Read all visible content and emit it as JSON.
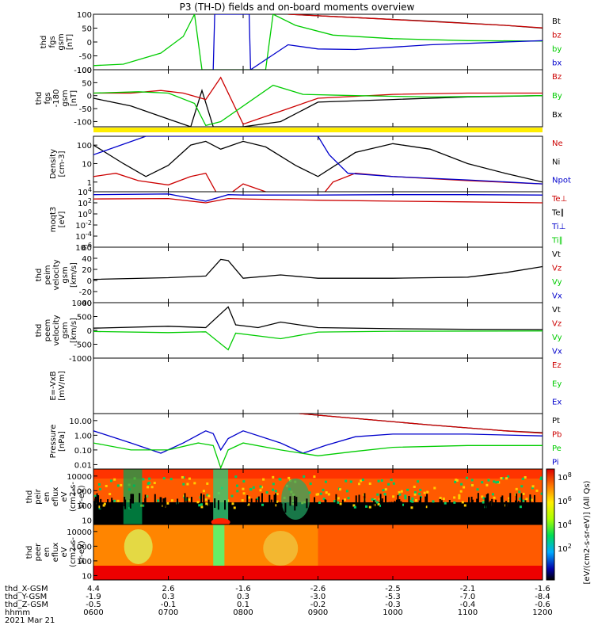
{
  "title": "P3 (TH-D) fields and on-board moments overview",
  "date_label": "2021 Mar 21",
  "colorbar_label": "[eV/(cm2-s-sr-eV)] (All Qs)",
  "colors": {
    "black": "#000000",
    "red": "#cc0000",
    "green": "#00cc00",
    "blue": "#0000cc",
    "yellow": "#ffee00"
  },
  "footer": {
    "row_labels": [
      "thd_X-GSM",
      "thd_Y-GSM",
      "thd_Z-GSM",
      "hhmm"
    ],
    "columns": [
      [
        "4.4",
        "-1.9",
        "-0.5",
        "0600"
      ],
      [
        "2.6",
        "0.3",
        "-0.1",
        "0700"
      ],
      [
        "-1.6",
        "0.3",
        "0.1",
        "0800"
      ],
      [
        "-2.6",
        "-3.0",
        "-0.2",
        "0900"
      ],
      [
        "-2.5",
        "-5.3",
        "-0.3",
        "1000"
      ],
      [
        "-2.1",
        "-7.0",
        "-0.4",
        "1100"
      ],
      [
        "-1.6",
        "-8.4",
        "-0.6",
        "1200"
      ]
    ]
  },
  "chart_data": [
    {
      "panel": "fgs",
      "type": "line",
      "ylabel": [
        "thd",
        "fgs",
        "gsm",
        "[nT]"
      ],
      "ylim": [
        -100,
        100
      ],
      "yticks": [
        "100",
        "50",
        "0",
        "-50",
        "-100"
      ],
      "legend": [
        {
          "name": "Bt",
          "color": "#000000"
        },
        {
          "name": "bz",
          "color": "#cc0000"
        },
        {
          "name": "by",
          "color": "#00cc00"
        },
        {
          "name": "bx",
          "color": "#0000cc"
        }
      ],
      "series": [
        {
          "name": "Bt",
          "color": "#000000",
          "x": [
            8.6,
            9.5,
            10.5,
            11.5,
            12.0
          ],
          "y": [
            100,
            88,
            75,
            60,
            50
          ]
        },
        {
          "name": "bz",
          "color": "#cc0000",
          "x": [
            8.6,
            9.5,
            10.5,
            11.5,
            12.0
          ],
          "y": [
            100,
            88,
            74,
            60,
            51
          ]
        },
        {
          "name": "by",
          "color": "#00cc00",
          "x": [
            6.0,
            6.4,
            6.9,
            7.2,
            7.35,
            7.45,
            8.3,
            8.4,
            8.7,
            9.2,
            10.0,
            11.0,
            12.0
          ],
          "y": [
            -85,
            -80,
            -40,
            20,
            100,
            -100,
            -100,
            100,
            60,
            25,
            12,
            5,
            3
          ]
        },
        {
          "name": "bx",
          "color": "#0000cc",
          "x": [
            7.6,
            7.62,
            8.08,
            8.1,
            8.6,
            9.0,
            9.5,
            10.5,
            11.5,
            12.0
          ],
          "y": [
            -100,
            100,
            100,
            -100,
            -10,
            -25,
            -27,
            -10,
            0,
            5
          ]
        }
      ]
    },
    {
      "panel": "fgs_m180",
      "type": "line",
      "ylabel": [
        "thd",
        "fgs",
        "-180",
        "gsm",
        "[nT]"
      ],
      "ylim": [
        -120,
        100
      ],
      "yticks": [
        "100",
        "50",
        "0",
        "-50",
        "-100"
      ],
      "legend": [
        {
          "name": "Bz",
          "color": "#cc0000"
        },
        {
          "name": "By",
          "color": "#00cc00"
        },
        {
          "name": "Bx",
          "color": "#000000"
        }
      ],
      "series": [
        {
          "name": "Bx",
          "color": "#000000",
          "x": [
            6.0,
            6.5,
            7.0,
            7.3,
            7.45,
            7.6,
            7.7,
            8.0,
            8.5,
            9.0,
            10.0,
            11.0,
            12.0
          ],
          "y": [
            -10,
            -40,
            -90,
            -120,
            20,
            -120,
            -120,
            -120,
            -100,
            -25,
            -15,
            -5,
            0
          ]
        },
        {
          "name": "Bz",
          "color": "#cc0000",
          "x": [
            6.0,
            6.5,
            6.9,
            7.2,
            7.5,
            7.7,
            8.0,
            8.5,
            9.0,
            10.0,
            11.0,
            12.0
          ],
          "y": [
            10,
            10,
            20,
            10,
            -15,
            70,
            -110,
            -60,
            -10,
            5,
            10,
            10
          ]
        },
        {
          "name": "By",
          "color": "#00cc00",
          "x": [
            6.0,
            6.6,
            7.0,
            7.35,
            7.5,
            7.7,
            8.4,
            8.8,
            9.5,
            10.5,
            12.0
          ],
          "y": [
            10,
            15,
            10,
            -30,
            -115,
            -100,
            40,
            5,
            0,
            -5,
            0
          ]
        }
      ]
    },
    {
      "panel": "density",
      "type": "line",
      "ylabel": [
        "Density",
        "[cm-3]"
      ],
      "scale": "log",
      "ylim": [
        0.3,
        300
      ],
      "yticks": [
        "100",
        "10",
        "1"
      ],
      "legend": [
        {
          "name": "Ne",
          "color": "#cc0000"
        },
        {
          "name": "Ni",
          "color": "#000000"
        },
        {
          "name": "Npot",
          "color": "#0000cc"
        }
      ],
      "series": [
        {
          "name": "Ni",
          "color": "#000000",
          "x": [
            6.0,
            6.4,
            6.7,
            7.0,
            7.3,
            7.5,
            7.7,
            8.0,
            8.3,
            8.7,
            9.0,
            9.5,
            10.0,
            10.5,
            11.0,
            11.5,
            12.0
          ],
          "y": [
            100,
            10,
            2,
            8,
            100,
            160,
            60,
            160,
            80,
            8,
            2,
            40,
            120,
            60,
            10,
            3,
            1
          ]
        },
        {
          "name": "Ne",
          "color": "#cc0000",
          "x": [
            6.0,
            6.3,
            6.6,
            7.0,
            7.3,
            7.5,
            7.7,
            8.0,
            8.3,
            8.7,
            9.0,
            9.2,
            9.5,
            10.0,
            11.0,
            12.0
          ],
          "y": [
            2,
            3,
            1.2,
            0.7,
            2,
            3,
            0.1,
            0.8,
            0.3,
            0.2,
            0.1,
            1,
            3,
            2,
            1.2,
            0.8
          ]
        },
        {
          "name": "Npot",
          "color": "#0000cc",
          "x": [
            6.0,
            6.7,
            7.0,
            8.0,
            9.0,
            9.15,
            9.4,
            10.0,
            11.0,
            12.0
          ],
          "y": [
            30,
            300,
            300,
            300,
            300,
            30,
            3,
            2,
            1.3,
            0.8
          ]
        }
      ]
    },
    {
      "panel": "moqt3",
      "type": "line",
      "ylabel": [
        "moqt3",
        "[eV]"
      ],
      "scale": "log",
      "ylim": [
        1e-06,
        10000
      ],
      "yticks": [
        "10^4",
        "10^2",
        "10^0",
        "10^-2",
        "10^-4",
        "10^-6"
      ],
      "legend": [
        {
          "name": "Te⊥",
          "color": "#cc0000"
        },
        {
          "name": "Te∥",
          "color": "#000000"
        },
        {
          "name": "Ti⊥",
          "color": "#0000cc"
        },
        {
          "name": "Ti∥",
          "color": "#00cc00"
        }
      ],
      "series": [
        {
          "name": "Te⊥",
          "color": "#cc0000",
          "x": [
            6.0,
            7.0,
            7.5,
            7.8,
            8.0,
            9.0,
            10.0,
            11.0,
            12.0
          ],
          "y": [
            500,
            600,
            100,
            600,
            500,
            300,
            200,
            150,
            100
          ]
        },
        {
          "name": "Ti⊥",
          "color": "#0000cc",
          "x": [
            6.0,
            7.0,
            7.5,
            7.8,
            8.0,
            9.0,
            10.0,
            11.0,
            12.0
          ],
          "y": [
            3000,
            4000,
            200,
            3000,
            2500,
            2500,
            3000,
            3000,
            2500
          ]
        }
      ]
    },
    {
      "panel": "peim_velocity",
      "type": "line",
      "ylabel": [
        "thd",
        "peim",
        "velocity",
        "gsm",
        "[km/s]"
      ],
      "ylim": [
        -40,
        60
      ],
      "yticks": [
        "60",
        "40",
        "20",
        "0",
        "-20",
        "-40"
      ],
      "legend": [
        {
          "name": "Vt",
          "color": "#000000"
        },
        {
          "name": "Vz",
          "color": "#cc0000"
        },
        {
          "name": "Vy",
          "color": "#00cc00"
        },
        {
          "name": "Vx",
          "color": "#0000cc"
        }
      ],
      "series": [
        {
          "name": "Vt",
          "color": "#000000",
          "x": [
            6.0,
            7.0,
            7.5,
            7.7,
            7.8,
            8.0,
            8.5,
            9.0,
            10.0,
            11.0,
            11.5,
            12.0
          ],
          "y": [
            2,
            5,
            8,
            38,
            36,
            4,
            10,
            4,
            4,
            6,
            14,
            25
          ]
        }
      ]
    },
    {
      "panel": "peem_velocity",
      "type": "line",
      "ylabel": [
        "thd",
        "peem",
        "velocity",
        "gsm",
        "[km/s]"
      ],
      "ylim": [
        -1000,
        1000
      ],
      "yticks": [
        "1000",
        "500",
        "0",
        "-500",
        "-1000"
      ],
      "legend": [
        {
          "name": "Vt",
          "color": "#000000"
        },
        {
          "name": "Vz",
          "color": "#cc0000"
        },
        {
          "name": "Vy",
          "color": "#00cc00"
        },
        {
          "name": "Vx",
          "color": "#0000cc"
        }
      ],
      "series": [
        {
          "name": "Vt",
          "color": "#000000",
          "x": [
            6.0,
            7.0,
            7.5,
            7.8,
            7.9,
            8.2,
            8.5,
            9.0,
            10.0,
            11.0,
            12.0
          ],
          "y": [
            80,
            150,
            100,
            850,
            200,
            100,
            300,
            100,
            60,
            40,
            30
          ]
        },
        {
          "name": "Vy",
          "color": "#00cc00",
          "x": [
            6.0,
            7.0,
            7.5,
            7.8,
            7.9,
            8.5,
            9.0,
            10.0,
            12.0
          ],
          "y": [
            -40,
            -80,
            -50,
            -700,
            -100,
            -300,
            -60,
            -30,
            -20
          ]
        }
      ]
    },
    {
      "panel": "efield",
      "type": "line",
      "ylabel": [
        "E=-VxB",
        "[mV/m]"
      ],
      "legend": [
        {
          "name": "Ez",
          "color": "#cc0000"
        },
        {
          "name": "Ey",
          "color": "#00cc00"
        },
        {
          "name": "Ex",
          "color": "#0000cc"
        }
      ],
      "series": []
    },
    {
      "panel": "pressure",
      "type": "line",
      "ylabel": [
        "Pressure",
        "[nPa]"
      ],
      "scale": "log",
      "ylim": [
        0.005,
        30
      ],
      "yticks": [
        "10.00",
        "1.00",
        "0.10",
        "0.01"
      ],
      "legend": [
        {
          "name": "Pt",
          "color": "#000000"
        },
        {
          "name": "Pb",
          "color": "#cc0000"
        },
        {
          "name": "Pe",
          "color": "#00cc00"
        },
        {
          "name": "Pi",
          "color": "#0000cc"
        }
      ],
      "series": [
        {
          "name": "Pt",
          "color": "#000000",
          "x": [
            8.75,
            9.5,
            10.5,
            11.5,
            12.0
          ],
          "y": [
            30,
            14,
            5,
            2,
            1.5
          ]
        },
        {
          "name": "Pb",
          "color": "#cc0000",
          "x": [
            8.75,
            9.5,
            10.5,
            11.5,
            12.0
          ],
          "y": [
            30,
            14,
            5,
            2,
            1.4
          ]
        },
        {
          "name": "Pi",
          "color": "#0000cc",
          "x": [
            6.0,
            6.5,
            6.9,
            7.2,
            7.5,
            7.6,
            7.7,
            7.8,
            8.0,
            8.5,
            8.8,
            9.1,
            9.5,
            10.0,
            11.0,
            12.0
          ],
          "y": [
            2,
            0.3,
            0.06,
            0.3,
            2,
            1.3,
            0.1,
            0.6,
            2,
            0.3,
            0.06,
            0.2,
            0.8,
            1.2,
            1.2,
            0.9
          ]
        },
        {
          "name": "Pe",
          "color": "#00cc00",
          "x": [
            6.0,
            6.5,
            7.0,
            7.4,
            7.6,
            7.7,
            7.8,
            8.0,
            8.5,
            9.0,
            9.5,
            10.0,
            11.0,
            12.0
          ],
          "y": [
            0.3,
            0.1,
            0.1,
            0.3,
            0.2,
            0.006,
            0.1,
            0.3,
            0.1,
            0.04,
            0.08,
            0.15,
            0.2,
            0.2
          ]
        }
      ]
    },
    {
      "panel": "peir_en_eflux",
      "type": "heatmap",
      "ylabel": [
        "thd",
        "peir",
        "en",
        "eflux",
        "eV",
        "(cm2-s-",
        "sr-eV)"
      ],
      "scale": "log",
      "ylim": [
        5,
        30000
      ],
      "yticks": [
        "10000",
        "1000",
        "100",
        "10"
      ]
    },
    {
      "panel": "peer_en_eflux",
      "type": "heatmap",
      "ylabel": [
        "thd",
        "peer",
        "en",
        "eflux",
        "eV",
        "(cm2-s-",
        "sr-eV)"
      ],
      "scale": "log",
      "ylim": [
        5,
        30000
      ],
      "yticks": [
        "10000",
        "1000",
        "100",
        "10"
      ]
    },
    {
      "panel": "colorbar",
      "type": "heatmap",
      "ticks": [
        "10^8",
        "10^6",
        "10^4",
        "10^2"
      ],
      "label": "[eV/(cm2-s-sr-eV)] (All Qs)"
    }
  ]
}
